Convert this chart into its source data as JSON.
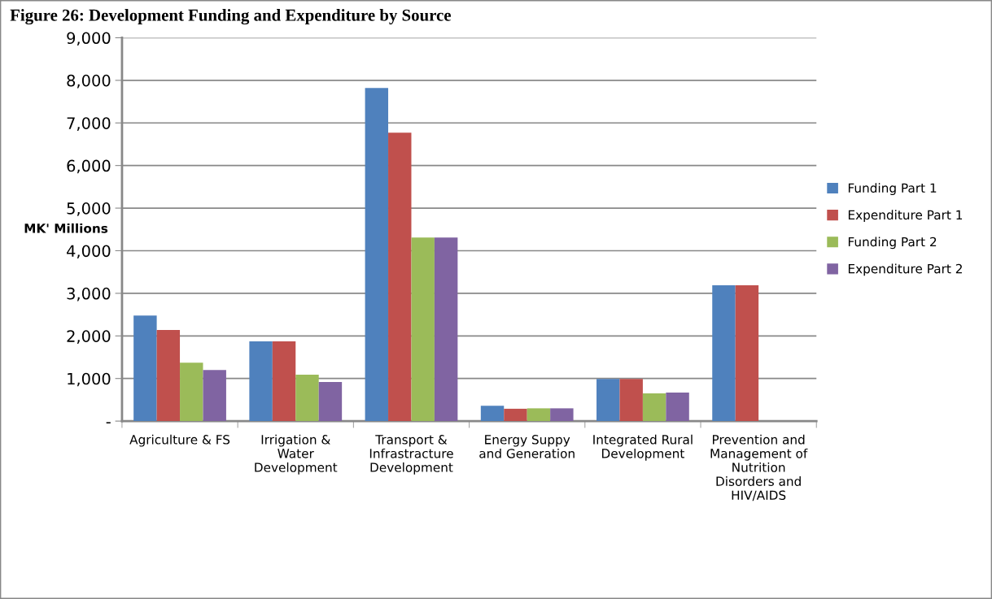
{
  "chart_data": {
    "type": "bar",
    "title": "Figure 26: Development Funding and Expenditure by Source",
    "ylabel": "MK' Millions",
    "categories": [
      "Agriculture & FS",
      "Irrigation &\nWater\nDevelopment",
      "Transport &\nInfrastracture\nDevelopment",
      "Energy Suppy\nand Generation",
      "Integrated Rural\nDevelopment",
      "Prevention and\nManagement of\nNutrition\nDisorders and\nHIV/AIDS"
    ],
    "series": [
      {
        "name": "Funding Part 1",
        "color": "#4f81bd",
        "values": [
          2480,
          1870,
          7820,
          360,
          990,
          3190
        ]
      },
      {
        "name": "Expenditure Part 1",
        "color": "#c0504d",
        "values": [
          2140,
          1870,
          6770,
          290,
          990,
          3190
        ]
      },
      {
        "name": "Funding Part 2",
        "color": "#9bbb59",
        "values": [
          1370,
          1090,
          4310,
          300,
          650,
          null
        ]
      },
      {
        "name": "Expenditure Part 2",
        "color": "#8064a2",
        "values": [
          1200,
          920,
          4310,
          300,
          670,
          null
        ]
      }
    ],
    "ylim": [
      0,
      9000
    ],
    "yticks": [
      {
        "value": 0,
        "label": "-"
      },
      {
        "value": 1000,
        "label": "1,000"
      },
      {
        "value": 2000,
        "label": "2,000"
      },
      {
        "value": 3000,
        "label": "3,000"
      },
      {
        "value": 4000,
        "label": "4,000"
      },
      {
        "value": 5000,
        "label": "5,000"
      },
      {
        "value": 6000,
        "label": "6,000"
      },
      {
        "value": 7000,
        "label": "7,000"
      },
      {
        "value": 8000,
        "label": "8,000"
      },
      {
        "value": 9000,
        "label": "9,000"
      }
    ],
    "grid": "y",
    "legend": "right"
  }
}
